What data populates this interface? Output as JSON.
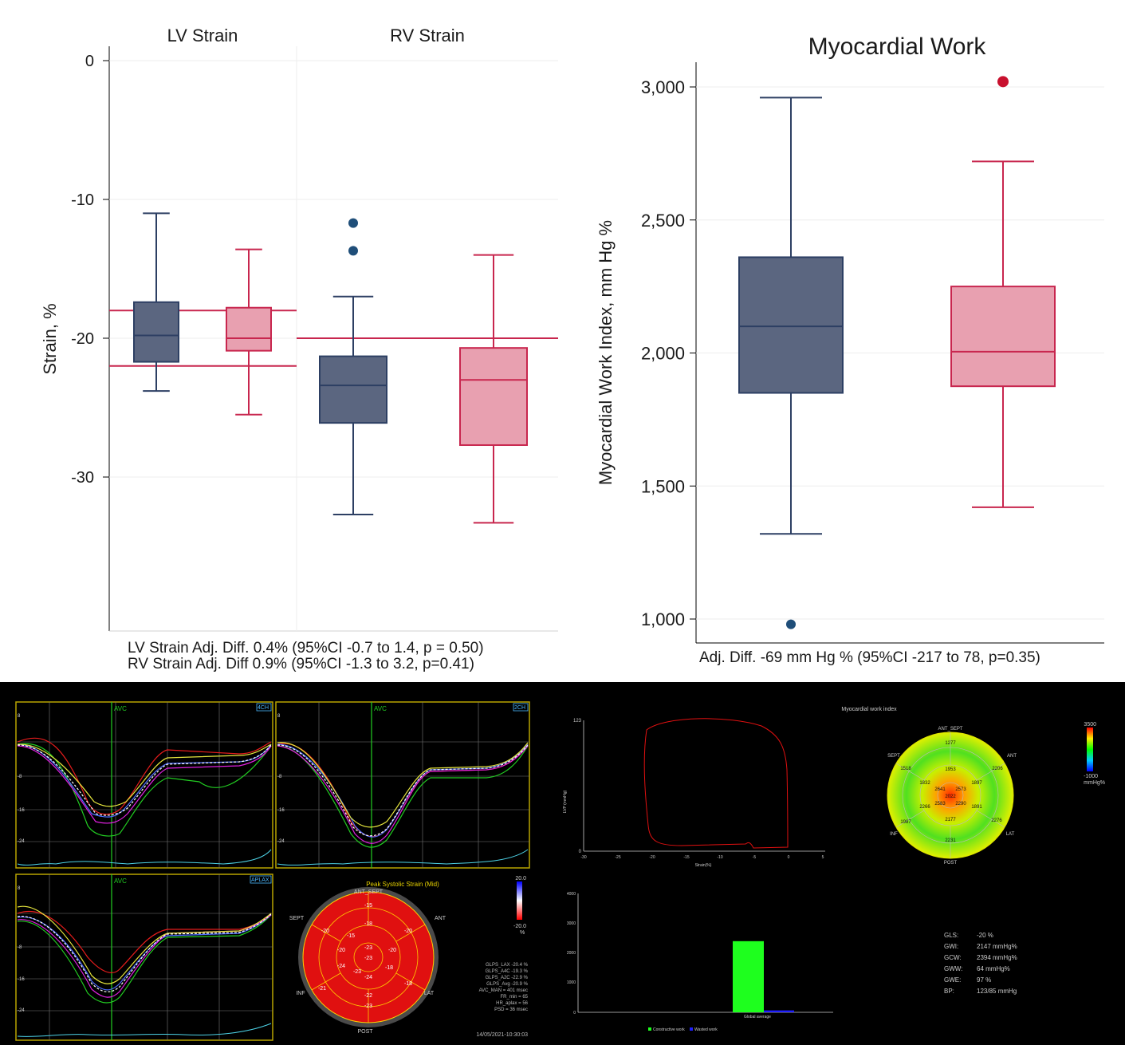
{
  "colors": {
    "navy": "#5b6680",
    "navy_edge": "#2d3f63",
    "pink": "#e8a0b0",
    "pink_edge": "#c8264e",
    "outlier_navy": "#1f4e79",
    "outlier_red": "#c8102e"
  },
  "chart_data": [
    {
      "type": "box",
      "panel": "strain",
      "groups": [
        "LV Strain",
        "RV Strain"
      ],
      "ylabel": "Strain, %",
      "yticks": [
        0,
        -10,
        -20,
        -30
      ],
      "ylim": [
        -40,
        1
      ],
      "boxes": [
        {
          "group": "LV Strain",
          "color": "navy",
          "min": -23.8,
          "q1": -21.7,
          "median": -19.8,
          "q3": -17.4,
          "max": -11,
          "outliers": []
        },
        {
          "group": "LV Strain",
          "color": "pink",
          "min": -25.5,
          "q1": -20.9,
          "median": -20,
          "q3": -17.8,
          "max": -13.6,
          "outliers": []
        },
        {
          "group": "RV Strain",
          "color": "navy",
          "min": -32.7,
          "q1": -26.1,
          "median": -23.4,
          "q3": -21.3,
          "max": -17,
          "outliers": [
            -11.7,
            -13.7
          ]
        },
        {
          "group": "RV Strain",
          "color": "pink",
          "min": -33.3,
          "q1": -27.7,
          "median": -23,
          "q3": -20.7,
          "max": -14,
          "outliers": []
        }
      ],
      "reference_lines": [
        {
          "group": "LV Strain",
          "values": [
            -18,
            -22
          ]
        },
        {
          "group": "RV Strain",
          "values": [
            -20
          ]
        }
      ],
      "footnotes": [
        "LV Strain Adj. Diff. 0.4% (95%CI -0.7 to 1.4, p = 0.50)",
        "RV Strain Adj. Diff  0.9% (95%CI -1.3 to 3.2, p=0.41)"
      ]
    },
    {
      "type": "box",
      "panel": "myocardial-work",
      "title": "Myocardial Work",
      "ylabel": "Myocardial Work Index, mm Hg %",
      "yticks": [
        1000,
        1500,
        2000,
        2500,
        3000
      ],
      "ytick_labels": [
        "1,000",
        "1,500",
        "2,000",
        "2,500",
        "3,000"
      ],
      "ylim": [
        900,
        3100
      ],
      "boxes": [
        {
          "color": "navy",
          "min": 1320,
          "q1": 1850,
          "median": 2100,
          "q3": 2360,
          "max": 2960,
          "outliers": [
            980
          ]
        },
        {
          "color": "pink",
          "min": 1420,
          "q1": 1875,
          "median": 2005,
          "q3": 2250,
          "max": 2720,
          "outliers": [
            3020
          ]
        }
      ],
      "footnotes": [
        "Adj. Diff. -69 mm Hg % (95%CI -217 to 78, p=0.35)"
      ]
    }
  ],
  "echo_strain": {
    "views": [
      "4CH",
      "2CH",
      "APLAX"
    ],
    "avc_label": "AVC",
    "y_labels": [
      "8",
      "-8",
      "-16",
      "-24"
    ],
    "bullseye_title": "Peak Systolic Strain (Mid)",
    "bullseye_labels": {
      "top": "ANT_SEPT",
      "left": "SEPT",
      "right": "ANT",
      "lower_left": "INF",
      "lower_right": "LAT",
      "bottom": "POST"
    },
    "bullseye_values": [
      "-15",
      "-18",
      "-20",
      "-15",
      "-20",
      "-20",
      "-23",
      "-23",
      "-20",
      "-24",
      "-23",
      "-21",
      "-18",
      "-24",
      "-18",
      "-22",
      "-23"
    ],
    "scale_max": "20.0",
    "scale_min": "-20.0",
    "scale_unit": "%",
    "stats": [
      "GLPS_LAX -20.4 %",
      "GLPS_A4C -19.3 %",
      "GLPS_A2C -22.9 %",
      "GLPS_Avg -20.9 %",
      "AVC_MAN = 401 msec",
      "FR_min = 65",
      "HR_aplax = 56",
      "PSD = 36 msec"
    ],
    "timestamp": "14/05/2021-10:30:03"
  },
  "echo_work": {
    "title": "Myocardial work index",
    "loop_ylabel": "LVP (mmHg)",
    "loop_xlabel": "Strain(%)",
    "loop_ymax": "123",
    "loop_ymin": "0",
    "loop_xticks": [
      "-30",
      "-25",
      "-20",
      "-15",
      "-10",
      "-5",
      "0",
      "5"
    ],
    "bullseye_labels": {
      "top": "ANT_SEPT",
      "left": "SEPT",
      "right": "ANT",
      "lower_left": "INF",
      "lower_right": "LAT",
      "bottom": "POST"
    },
    "bullseye_values": [
      "1277",
      "1953",
      "1518",
      "1832",
      "2641",
      "2573",
      "1897",
      "2206",
      "2022",
      "2583",
      "2290",
      "2266",
      "1891",
      "1987",
      "2276",
      "2177",
      "2231"
    ],
    "scale_max": "3500",
    "scale_min": "-1000",
    "scale_unit": "mmHg%",
    "bar_yticks": [
      "4000",
      "3000",
      "2000",
      "1000",
      "0"
    ],
    "bar_values": {
      "constructive": 2394,
      "wasted": 64
    },
    "bar_xlabel": "Global average",
    "legend": [
      "Constructive work",
      "Wasted work"
    ],
    "stats": [
      [
        "GLS:",
        "-20 %"
      ],
      [
        "GWI:",
        "2147 mmHg%"
      ],
      [
        "GCW:",
        "2394 mmHg%"
      ],
      [
        "GWW:",
        "64 mmHg%"
      ],
      [
        "GWE:",
        "97 %"
      ],
      [
        "BP:",
        "123/85 mmHg"
      ]
    ]
  }
}
